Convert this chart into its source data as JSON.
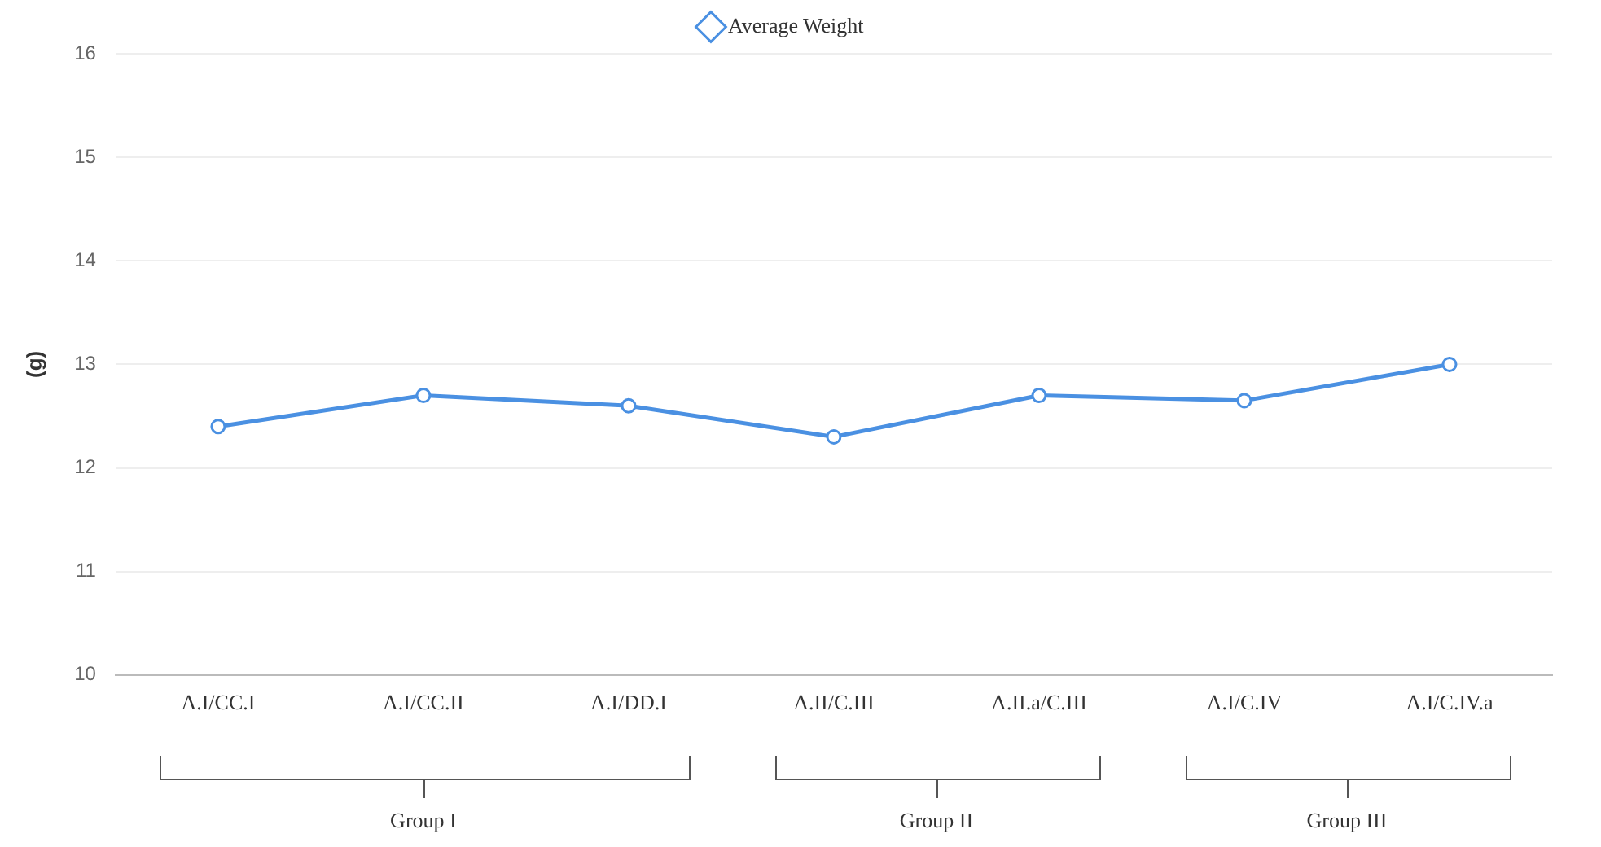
{
  "chart_data": {
    "type": "line",
    "ylabel": "(g)",
    "categories": [
      "A.I/CC.I",
      "A.I/CC.II",
      "A.I/DD.I",
      "A.II/C.III",
      "A.II.a/C.III",
      "A.I/C.IV",
      "A.I/C.IV.a"
    ],
    "series": [
      {
        "name": "Average Weight",
        "color": "#4a90e2",
        "values": [
          12.4,
          12.7,
          12.6,
          12.3,
          12.7,
          12.65,
          13.0
        ]
      }
    ],
    "ylim": [
      10,
      16
    ],
    "yticks": [
      10,
      11,
      12,
      13,
      14,
      15,
      16
    ],
    "grid": "y",
    "legend": "top",
    "marker": "circle",
    "line_style": "solid",
    "annotations": [
      "Group I",
      "Group II",
      "Group III"
    ]
  }
}
